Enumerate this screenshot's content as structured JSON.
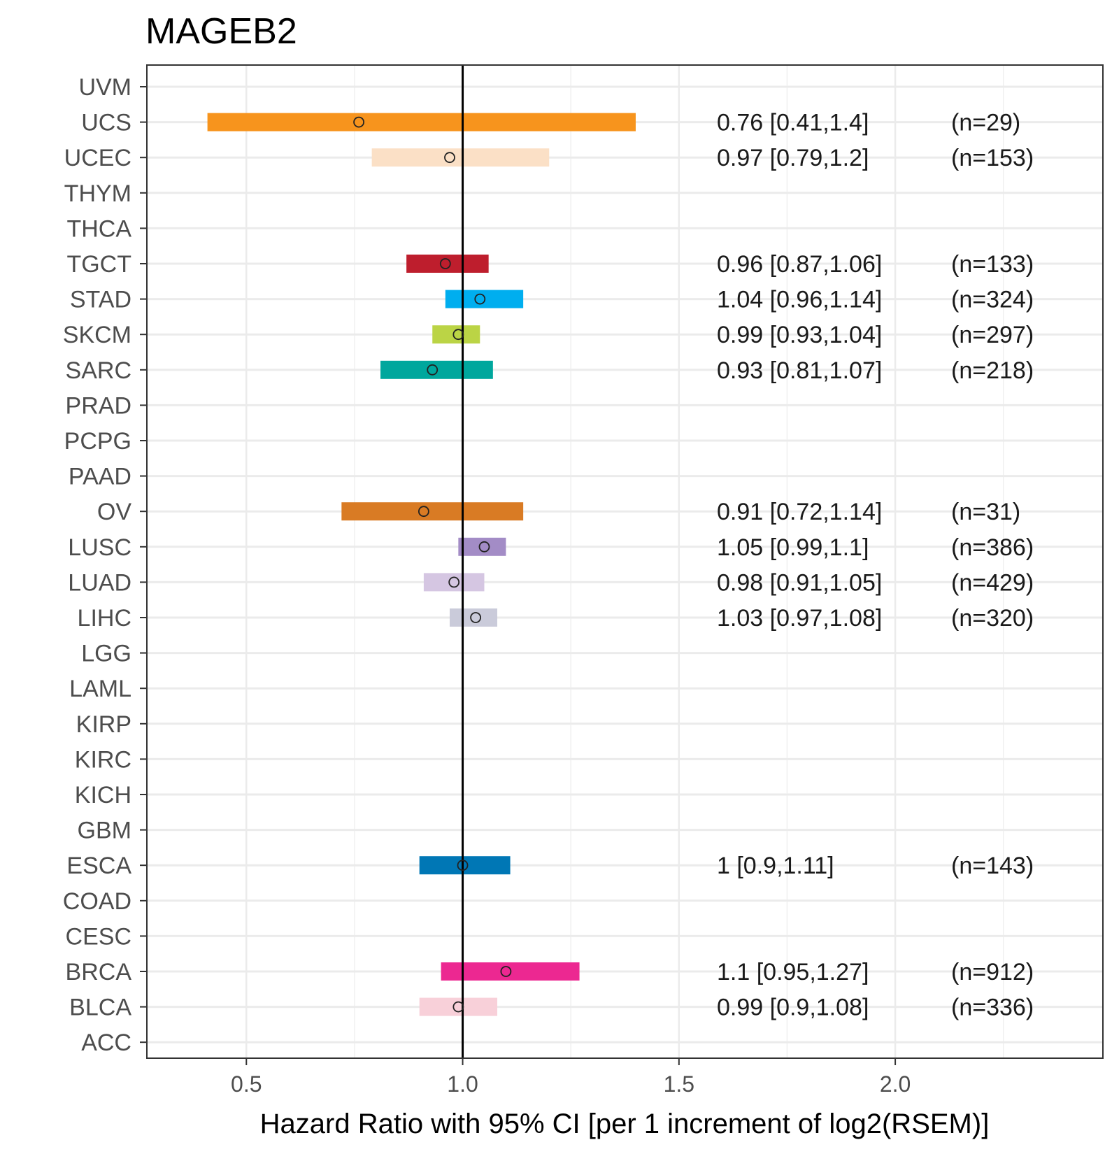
{
  "chart_data": {
    "type": "forest",
    "title": "MAGEB2",
    "xlabel": "Hazard Ratio with 95% CI [per 1 increment of log2(RSEM)]",
    "ylabel": "",
    "xlim": [
      0.27,
      2.48
    ],
    "xticks": [
      0.5,
      1.0,
      1.5,
      2.0
    ],
    "xtick_labels": [
      "0.5",
      "1.0",
      "1.5",
      "2.0"
    ],
    "reference_line": 1.0,
    "grid": true,
    "categories": [
      "UVM",
      "UCS",
      "UCEC",
      "THYM",
      "THCA",
      "TGCT",
      "STAD",
      "SKCM",
      "SARC",
      "PRAD",
      "PCPG",
      "PAAD",
      "OV",
      "LUSC",
      "LUAD",
      "LIHC",
      "LGG",
      "LAML",
      "KIRP",
      "KIRC",
      "KICH",
      "GBM",
      "ESCA",
      "COAD",
      "CESC",
      "BRCA",
      "BLCA",
      "ACC"
    ],
    "series": [
      {
        "name": "UCS",
        "hr": 0.76,
        "lower": 0.41,
        "upper": 1.4,
        "n": 29,
        "label": "0.76 [0.41,1.4]",
        "n_label": "(n=29)",
        "color": "#F7941D"
      },
      {
        "name": "UCEC",
        "hr": 0.97,
        "lower": 0.79,
        "upper": 1.2,
        "n": 153,
        "label": "0.97 [0.79,1.2]",
        "n_label": "(n=153)",
        "color": "#FBE0C6"
      },
      {
        "name": "TGCT",
        "hr": 0.96,
        "lower": 0.87,
        "upper": 1.06,
        "n": 133,
        "label": "0.96 [0.87,1.06]",
        "n_label": "(n=133)",
        "color": "#BE1E2D"
      },
      {
        "name": "STAD",
        "hr": 1.04,
        "lower": 0.96,
        "upper": 1.14,
        "n": 324,
        "label": "1.04 [0.96,1.14]",
        "n_label": "(n=324)",
        "color": "#00AEEF"
      },
      {
        "name": "SKCM",
        "hr": 0.99,
        "lower": 0.93,
        "upper": 1.04,
        "n": 297,
        "label": "0.99 [0.93,1.04]",
        "n_label": "(n=297)",
        "color": "#BBD445"
      },
      {
        "name": "SARC",
        "hr": 0.93,
        "lower": 0.81,
        "upper": 1.07,
        "n": 218,
        "label": "0.93 [0.81,1.07]",
        "n_label": "(n=218)",
        "color": "#00A79D"
      },
      {
        "name": "OV",
        "hr": 0.91,
        "lower": 0.72,
        "upper": 1.14,
        "n": 31,
        "label": "0.91 [0.72,1.14]",
        "n_label": "(n=31)",
        "color": "#D97B24"
      },
      {
        "name": "LUSC",
        "hr": 1.05,
        "lower": 0.99,
        "upper": 1.1,
        "n": 386,
        "label": "1.05 [0.99,1.1]",
        "n_label": "(n=386)",
        "color": "#A38CC6"
      },
      {
        "name": "LUAD",
        "hr": 0.98,
        "lower": 0.91,
        "upper": 1.05,
        "n": 429,
        "label": "0.98 [0.91,1.05]",
        "n_label": "(n=429)",
        "color": "#D5C6E2"
      },
      {
        "name": "LIHC",
        "hr": 1.03,
        "lower": 0.97,
        "upper": 1.08,
        "n": 320,
        "label": "1.03 [0.97,1.08]",
        "n_label": "(n=320)",
        "color": "#CACBDA"
      },
      {
        "name": "ESCA",
        "hr": 1.0,
        "lower": 0.9,
        "upper": 1.11,
        "n": 143,
        "label": "1 [0.9,1.11]",
        "n_label": "(n=143)",
        "color": "#0077B5"
      },
      {
        "name": "BRCA",
        "hr": 1.1,
        "lower": 0.95,
        "upper": 1.27,
        "n": 912,
        "label": "1.1 [0.95,1.27]",
        "n_label": "(n=912)",
        "color": "#EC2891"
      },
      {
        "name": "BLCA",
        "hr": 0.99,
        "lower": 0.9,
        "upper": 1.08,
        "n": 336,
        "label": "0.99 [0.9,1.08]",
        "n_label": "(n=336)",
        "color": "#F8D0D9"
      }
    ]
  }
}
